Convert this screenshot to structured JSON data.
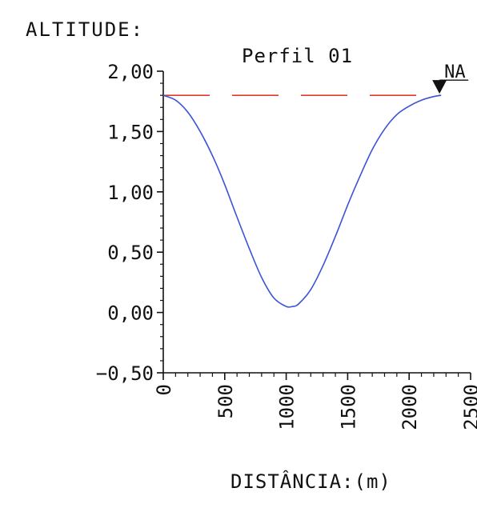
{
  "chart_data": {
    "type": "line",
    "title": "Perfil 01",
    "ylabel": "ALTITUDE:",
    "xlabel": "DISTÂNCIA:(m)",
    "water_level_label": "NA",
    "water_level": 1.8,
    "xlim": [
      0,
      2500
    ],
    "ylim": [
      -0.5,
      2.0
    ],
    "x_ticks": [
      0,
      500,
      1000,
      1500,
      2000,
      2500
    ],
    "x_tick_labels": [
      "0",
      "500",
      "1000",
      "1500",
      "2000",
      "2500"
    ],
    "y_ticks": [
      2.0,
      1.5,
      1.0,
      0.5,
      0.0,
      -0.5
    ],
    "y_tick_labels": [
      "2,00",
      "1,50",
      "1,00",
      "0,50",
      "0,00",
      "−0,50"
    ],
    "grid": false,
    "series": [
      {
        "color": "#3b53d6",
        "x": [
          0,
          100,
          200,
          300,
          400,
          500,
          600,
          700,
          800,
          900,
          1000,
          1050,
          1100,
          1200,
          1300,
          1400,
          1500,
          1600,
          1700,
          1800,
          1900,
          2000,
          2100,
          2200,
          2260
        ],
        "y": [
          1.8,
          1.76,
          1.66,
          1.5,
          1.3,
          1.06,
          0.79,
          0.53,
          0.29,
          0.12,
          0.05,
          0.05,
          0.07,
          0.19,
          0.39,
          0.63,
          0.89,
          1.13,
          1.35,
          1.52,
          1.64,
          1.71,
          1.76,
          1.79,
          1.8
        ]
      }
    ],
    "water_line_color": "#e03b2a"
  }
}
